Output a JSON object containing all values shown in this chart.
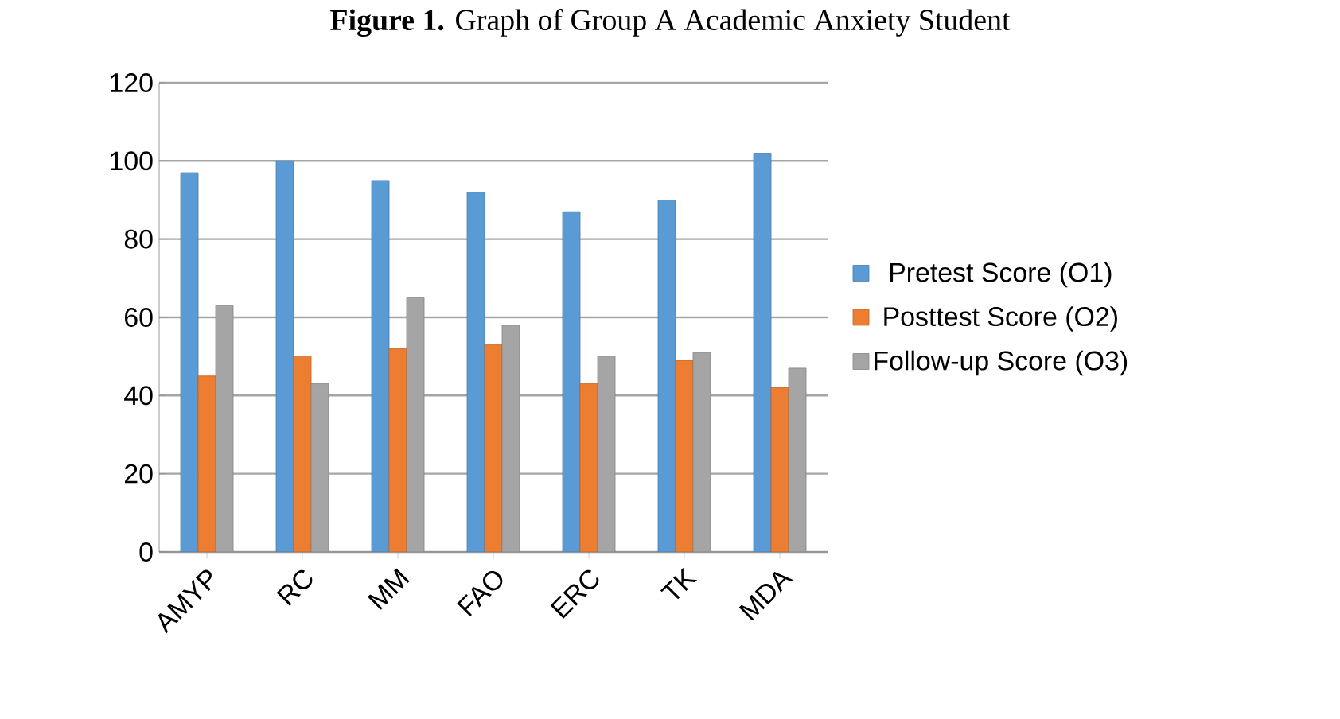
{
  "chart_data": {
    "type": "bar",
    "title": "**Figure 1.** Graph of Group A Academic Anxiety Student",
    "categories": [
      "AMYP",
      "RC",
      "MM",
      "FAO",
      "ERC",
      "TK",
      "MDA"
    ],
    "series": [
      {
        "name": "Pretest Score (O1)",
        "color": "#5b9bd5",
        "values": [
          97,
          100,
          95,
          92,
          87,
          90,
          102
        ]
      },
      {
        "name": "Posttest Score  (O2)",
        "color": "#ed7d31",
        "values": [
          45,
          50,
          52,
          53,
          43,
          49,
          42
        ]
      },
      {
        "name": "Follow-up Score  (O3)",
        "color": "#a5a5a5",
        "values": [
          63,
          43,
          65,
          58,
          50,
          51,
          47
        ]
      }
    ],
    "ylim": [
      0,
      120
    ],
    "yticks": [
      0,
      20,
      40,
      60,
      80,
      100,
      120
    ],
    "grid": "y",
    "legend": "right"
  }
}
